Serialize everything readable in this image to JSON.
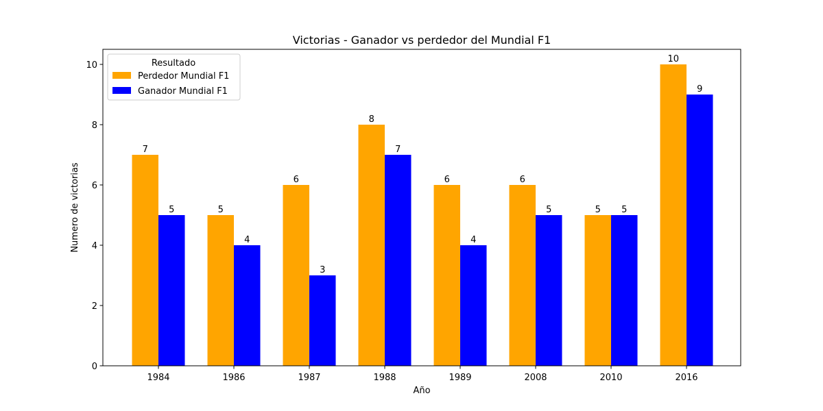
{
  "chart_data": {
    "type": "bar",
    "title": "Victorias - Ganador vs perdedor del Mundial F1",
    "xlabel": "Año",
    "ylabel": "Numero de victorias",
    "categories": [
      "1984",
      "1986",
      "1987",
      "1988",
      "1989",
      "2008",
      "2010",
      "2016"
    ],
    "series": [
      {
        "name": "Perdedor Mundial F1",
        "color": "#ffa500",
        "values": [
          7,
          5,
          6,
          8,
          6,
          6,
          5,
          10
        ]
      },
      {
        "name": "Ganador Mundial F1",
        "color": "#0000ff",
        "values": [
          5,
          4,
          3,
          7,
          4,
          5,
          5,
          9
        ]
      }
    ],
    "ylim": [
      0,
      10.5
    ],
    "yticks": [
      0,
      2,
      4,
      6,
      8,
      10
    ],
    "grid": false,
    "legend": {
      "title": "Resultado",
      "position": "top-left"
    }
  }
}
